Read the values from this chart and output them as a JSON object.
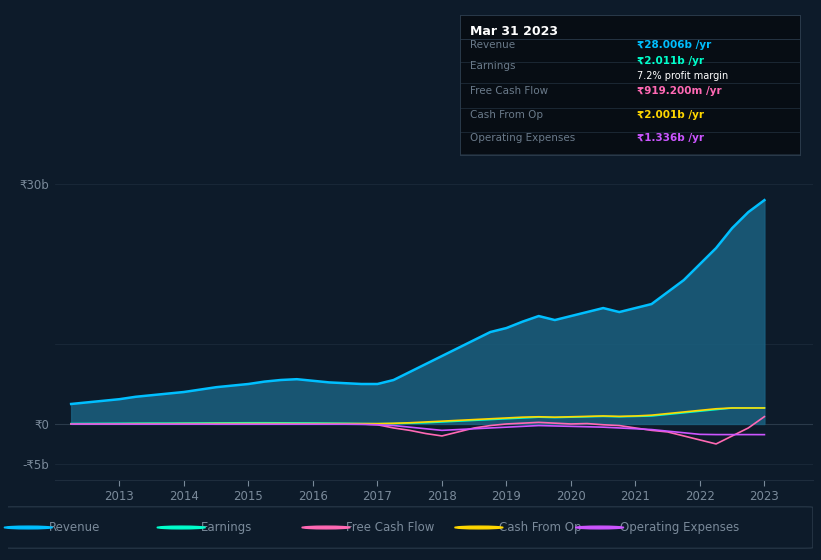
{
  "background_color": "#0d1b2a",
  "plot_bg_color": "#0d1b2a",
  "years": [
    2012.25,
    2012.5,
    2012.75,
    2013.0,
    2013.25,
    2013.5,
    2013.75,
    2014.0,
    2014.25,
    2014.5,
    2014.75,
    2015.0,
    2015.25,
    2015.5,
    2015.75,
    2016.0,
    2016.25,
    2016.5,
    2016.75,
    2017.0,
    2017.25,
    2017.5,
    2017.75,
    2018.0,
    2018.25,
    2018.5,
    2018.75,
    2019.0,
    2019.25,
    2019.5,
    2019.75,
    2020.0,
    2020.25,
    2020.5,
    2020.75,
    2021.0,
    2021.25,
    2021.5,
    2021.75,
    2022.0,
    2022.25,
    2022.5,
    2022.75,
    2023.0
  ],
  "revenue": [
    2.5,
    2.7,
    2.9,
    3.1,
    3.4,
    3.6,
    3.8,
    4.0,
    4.3,
    4.6,
    4.8,
    5.0,
    5.3,
    5.5,
    5.6,
    5.4,
    5.2,
    5.1,
    5.0,
    5.0,
    5.5,
    6.5,
    7.5,
    8.5,
    9.5,
    10.5,
    11.5,
    12.0,
    12.8,
    13.5,
    13.0,
    13.5,
    14.0,
    14.5,
    14.0,
    14.5,
    15.0,
    16.5,
    18.0,
    20.0,
    22.0,
    24.5,
    26.5,
    28.0
  ],
  "earnings": [
    0.05,
    0.06,
    0.07,
    0.08,
    0.09,
    0.1,
    0.1,
    0.11,
    0.12,
    0.13,
    0.14,
    0.15,
    0.15,
    0.14,
    0.13,
    0.12,
    0.1,
    0.08,
    0.05,
    0.03,
    0.05,
    0.1,
    0.15,
    0.25,
    0.35,
    0.45,
    0.55,
    0.65,
    0.75,
    0.85,
    0.8,
    0.85,
    0.9,
    0.95,
    0.9,
    0.95,
    1.0,
    1.2,
    1.4,
    1.6,
    1.8,
    2.0,
    2.0,
    2.011
  ],
  "free_cash_flow": [
    0.0,
    0.0,
    0.0,
    0.0,
    0.0,
    -0.01,
    -0.01,
    0.0,
    0.0,
    0.0,
    0.0,
    0.0,
    0.0,
    0.0,
    0.0,
    0.0,
    0.0,
    0.0,
    0.0,
    -0.1,
    -0.5,
    -0.8,
    -1.2,
    -1.5,
    -1.0,
    -0.5,
    -0.2,
    0.0,
    0.1,
    0.2,
    0.1,
    0.0,
    0.05,
    -0.1,
    -0.2,
    -0.5,
    -0.8,
    -1.0,
    -1.5,
    -2.0,
    -2.5,
    -1.5,
    -0.5,
    0.9192
  ],
  "cash_from_op": [
    0.01,
    0.01,
    0.02,
    0.02,
    0.03,
    0.03,
    0.03,
    0.04,
    0.04,
    0.05,
    0.05,
    0.05,
    0.05,
    0.05,
    0.04,
    0.04,
    0.04,
    0.04,
    0.04,
    0.04,
    0.08,
    0.15,
    0.25,
    0.35,
    0.45,
    0.55,
    0.65,
    0.75,
    0.85,
    0.9,
    0.85,
    0.9,
    0.95,
    1.0,
    0.95,
    1.0,
    1.1,
    1.3,
    1.5,
    1.7,
    1.9,
    2.0,
    2.0,
    2.001
  ],
  "operating_expenses": [
    -0.01,
    -0.01,
    -0.01,
    -0.01,
    -0.02,
    -0.02,
    -0.02,
    -0.02,
    -0.02,
    -0.03,
    -0.03,
    -0.03,
    -0.03,
    -0.03,
    -0.03,
    -0.03,
    -0.03,
    -0.03,
    -0.05,
    -0.1,
    -0.2,
    -0.4,
    -0.6,
    -0.8,
    -0.7,
    -0.6,
    -0.5,
    -0.4,
    -0.3,
    -0.2,
    -0.25,
    -0.3,
    -0.35,
    -0.4,
    -0.5,
    -0.6,
    -0.7,
    -0.9,
    -1.1,
    -1.3,
    -1.33,
    -1.33,
    -1.33,
    -1.336
  ],
  "revenue_color": "#00bfff",
  "earnings_color": "#00ffcc",
  "free_cash_flow_color": "#ff69b4",
  "cash_from_op_color": "#ffd700",
  "operating_expenses_color": "#cc55ff",
  "fill_color": "#1a6080",
  "fill_alpha": 0.85,
  "grid_color": "#1e2d3d",
  "text_color": "#7a8a9a",
  "xlim": [
    2012.0,
    2023.75
  ],
  "ylim": [
    -7,
    33
  ],
  "tooltip_bg": "#070d14",
  "tooltip_border": "#2a3a4a",
  "tooltip_title": "Mar 31 2023",
  "tooltip_title_color": "#ffffff",
  "tooltip_label_color": "#6a7a8a",
  "legend_labels": [
    "Revenue",
    "Earnings",
    "Free Cash Flow",
    "Cash From Op",
    "Operating Expenses"
  ],
  "legend_colors": [
    "#00bfff",
    "#00ffcc",
    "#ff69b4",
    "#ffd700",
    "#cc55ff"
  ],
  "legend_text_color": "#7a8a9a",
  "xticks": [
    2013,
    2014,
    2015,
    2016,
    2017,
    2018,
    2019,
    2020,
    2021,
    2022,
    2023
  ],
  "ytick_vals": [
    30,
    0,
    -5
  ],
  "ytick_labels": [
    "₹30b",
    "₹0",
    "-₹5b"
  ]
}
